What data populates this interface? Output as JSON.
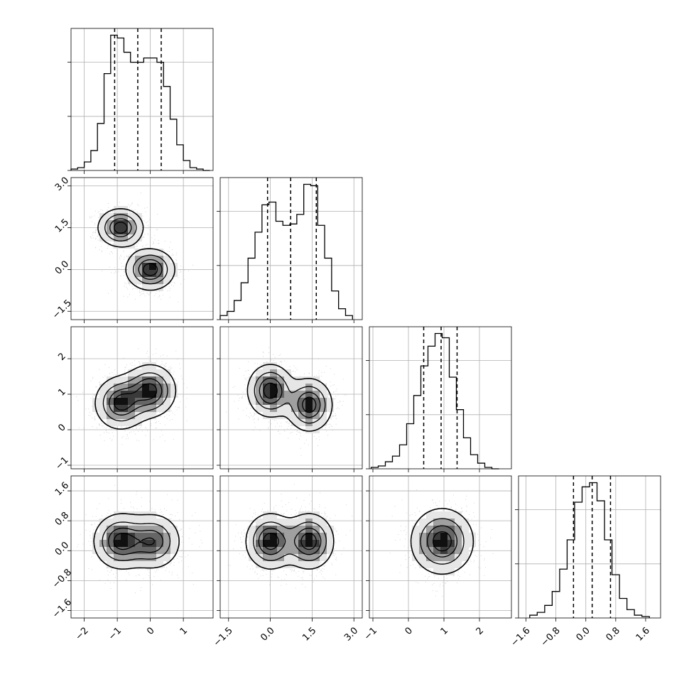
{
  "chart_data": {
    "type": "corner",
    "title": "",
    "grid": true,
    "parameters": [
      {
        "id": "p0",
        "range": [
          -2.4,
          1.9
        ],
        "ticks": [
          -2,
          -1,
          0,
          1
        ],
        "tick_labels": [
          "−2",
          "−1",
          "0",
          "1"
        ],
        "quantiles": [
          -1.08,
          -0.38,
          0.33
        ],
        "histogram": {
          "bin_edges": [
            -2.4,
            -2.2,
            -2.0,
            -1.8,
            -1.6,
            -1.4,
            -1.2,
            -1.0,
            -0.8,
            -0.6,
            -0.4,
            -0.2,
            0.0,
            0.2,
            0.4,
            0.6,
            0.8,
            1.0,
            1.2,
            1.4,
            1.6,
            1.8
          ],
          "counts": [
            0.01,
            0.02,
            0.06,
            0.14,
            0.33,
            0.68,
            0.95,
            0.93,
            0.83,
            0.76,
            0.76,
            0.79,
            0.79,
            0.76,
            0.59,
            0.36,
            0.18,
            0.07,
            0.02,
            0.01,
            0.0
          ]
        }
      },
      {
        "id": "p1",
        "range": [
          -1.8,
          3.3
        ],
        "ticks": [
          -1.5,
          0.0,
          1.5,
          3.0
        ],
        "tick_labels": [
          "−1.5",
          "0.0",
          "1.5",
          "3.0"
        ],
        "quantiles": [
          -0.1,
          0.73,
          1.65
        ],
        "histogram": {
          "bin_edges": [
            -1.8,
            -1.55,
            -1.3,
            -1.05,
            -0.8,
            -0.55,
            -0.3,
            -0.05,
            0.2,
            0.45,
            0.7,
            0.95,
            1.2,
            1.45,
            1.7,
            1.95,
            2.2,
            2.45,
            2.7,
            2.95
          ],
          "counts": [
            0.03,
            0.06,
            0.14,
            0.27,
            0.45,
            0.64,
            0.84,
            0.86,
            0.72,
            0.69,
            0.7,
            0.77,
            0.99,
            0.98,
            0.69,
            0.45,
            0.21,
            0.08,
            0.03
          ]
        }
      },
      {
        "id": "p2",
        "range": [
          -1.1,
          2.9
        ],
        "ticks": [
          -1,
          0,
          1,
          2
        ],
        "tick_labels": [
          "−1",
          "0",
          "1",
          "2"
        ],
        "quantiles": [
          0.43,
          0.92,
          1.37
        ],
        "histogram": {
          "bin_edges": [
            -1.05,
            -0.85,
            -0.65,
            -0.45,
            -0.25,
            -0.05,
            0.15,
            0.35,
            0.55,
            0.75,
            0.95,
            1.15,
            1.35,
            1.55,
            1.75,
            1.95,
            2.15,
            2.35,
            2.55
          ],
          "counts": [
            0.01,
            0.02,
            0.05,
            0.09,
            0.17,
            0.32,
            0.52,
            0.73,
            0.87,
            0.96,
            0.93,
            0.65,
            0.42,
            0.22,
            0.1,
            0.04,
            0.01,
            0.0
          ]
        }
      },
      {
        "id": "p3",
        "range": [
          -1.8,
          2.0
        ],
        "ticks": [
          -1.6,
          -0.8,
          0.0,
          0.8,
          1.6
        ],
        "tick_labels": [
          "−1.6",
          "−0.8",
          "0.0",
          "0.8",
          "1.6"
        ],
        "quantiles": [
          -0.33,
          0.17,
          0.66
        ],
        "histogram": {
          "bin_edges": [
            -1.5,
            -1.3,
            -1.1,
            -0.9,
            -0.7,
            -0.5,
            -0.3,
            -0.1,
            0.1,
            0.3,
            0.5,
            0.7,
            0.9,
            1.1,
            1.3,
            1.5,
            1.7
          ],
          "counts": [
            0.02,
            0.04,
            0.09,
            0.19,
            0.35,
            0.56,
            0.83,
            0.94,
            0.97,
            0.84,
            0.56,
            0.31,
            0.14,
            0.06,
            0.02,
            0.01
          ]
        }
      }
    ],
    "density_2d": [
      {
        "x": "p0",
        "y": "p1",
        "modes": [
          {
            "x": -0.9,
            "y": 1.5,
            "sx": 0.35,
            "sy": 0.35,
            "w": 1.0
          },
          {
            "x": 0.0,
            "y": 0.0,
            "sx": 0.38,
            "sy": 0.38,
            "w": 1.0
          }
        ]
      },
      {
        "x": "p0",
        "y": "p2",
        "modes": [
          {
            "x": -0.9,
            "y": 0.75,
            "sx": 0.4,
            "sy": 0.38,
            "w": 1.0
          },
          {
            "x": 0.0,
            "y": 1.1,
            "sx": 0.4,
            "sy": 0.38,
            "w": 1.0
          }
        ]
      },
      {
        "x": "p1",
        "y": "p2",
        "modes": [
          {
            "x": 0.0,
            "y": 1.1,
            "sx": 0.42,
            "sy": 0.38,
            "w": 1.0
          },
          {
            "x": 1.4,
            "y": 0.7,
            "sx": 0.42,
            "sy": 0.38,
            "w": 1.0
          }
        ]
      },
      {
        "x": "p0",
        "y": "p3",
        "modes": [
          {
            "x": -0.9,
            "y": 0.25,
            "sx": 0.42,
            "sy": 0.38,
            "w": 1.0
          },
          {
            "x": 0.1,
            "y": 0.25,
            "sx": 0.42,
            "sy": 0.38,
            "w": 0.85
          }
        ]
      },
      {
        "x": "p1",
        "y": "p3",
        "modes": [
          {
            "x": 0.0,
            "y": 0.25,
            "sx": 0.45,
            "sy": 0.38,
            "w": 1.0
          },
          {
            "x": 1.4,
            "y": 0.25,
            "sx": 0.45,
            "sy": 0.38,
            "w": 1.0
          }
        ]
      },
      {
        "x": "p2",
        "y": "p3",
        "modes": [
          {
            "x": 0.95,
            "y": 0.25,
            "sx": 0.45,
            "sy": 0.45,
            "w": 1.0
          }
        ]
      }
    ],
    "contour_levels": [
      0.15,
      0.4,
      0.65,
      0.85
    ],
    "colors": {
      "lines": "#000000",
      "points": "#b5b5b5",
      "grid": "#b0b0b0",
      "frame": "#000000"
    }
  }
}
